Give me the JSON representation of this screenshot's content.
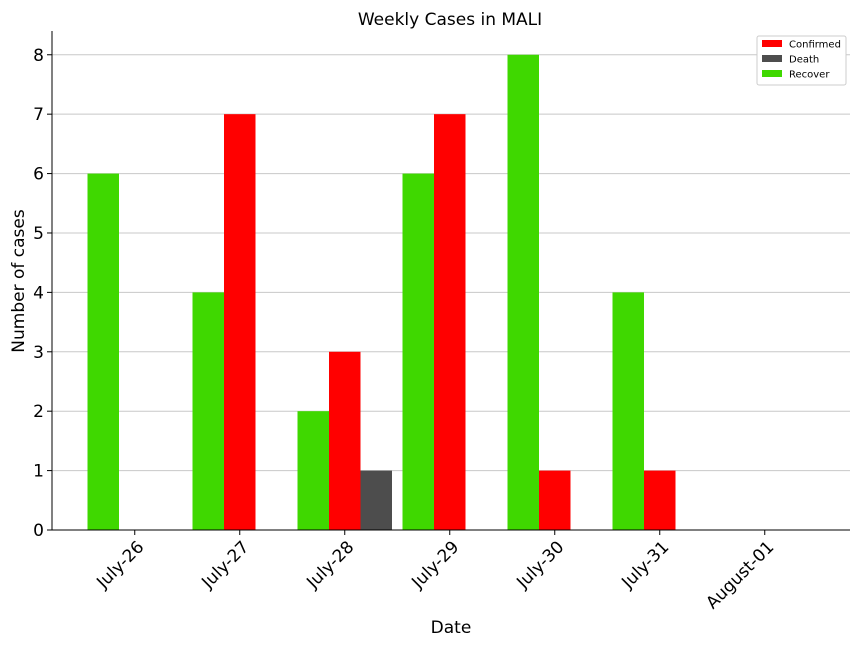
{
  "chart_data": {
    "type": "bar",
    "title": "Weekly Cases in MALI",
    "xlabel": "Date",
    "ylabel": "Number of cases",
    "categories": [
      "July-26",
      "July-27",
      "July-28",
      "July-29",
      "July-30",
      "July-31",
      "August-01"
    ],
    "series": [
      {
        "name": "Recover",
        "color": "#3fd800",
        "values": [
          6,
          4,
          2,
          6,
          8,
          4,
          0
        ]
      },
      {
        "name": "Confirmed",
        "color": "#ff0000",
        "values": [
          0,
          7,
          3,
          7,
          1,
          1,
          0
        ]
      },
      {
        "name": "Death",
        "color": "#4d4d4d",
        "values": [
          0,
          0,
          1,
          0,
          0,
          0,
          0
        ]
      }
    ],
    "legend_order": [
      "Confirmed",
      "Death",
      "Recover"
    ],
    "ylim": [
      0,
      8.4
    ],
    "yticks": [
      0,
      1,
      2,
      3,
      4,
      5,
      6,
      7,
      8
    ],
    "grid": "horizontal",
    "legend_position": "top-right"
  }
}
